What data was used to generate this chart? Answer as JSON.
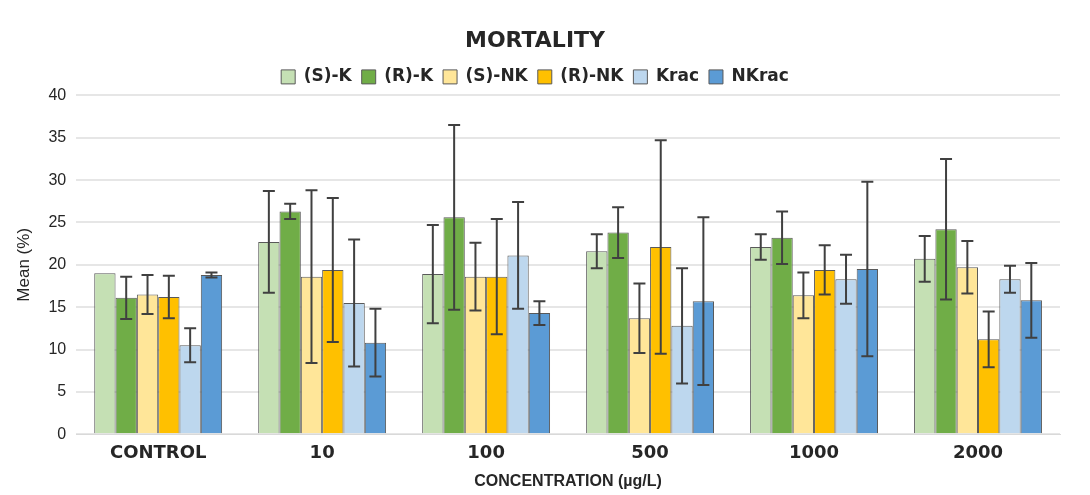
{
  "chart_data": {
    "type": "bar",
    "title": "MORTALITY",
    "xlabel": "CONCENTRATION (µg/L)",
    "ylabel": "Mean (%)",
    "categories": [
      "CONTROL",
      "10",
      "100",
      "500",
      "1000",
      "2000"
    ],
    "series": [
      {
        "name": "(S)-K",
        "color": "#c5e0b4",
        "values": [
          19.0,
          22.7,
          18.9,
          21.6,
          22.1,
          20.7
        ],
        "errors": [
          null,
          6.0,
          5.8,
          2.0,
          1.5,
          2.7
        ]
      },
      {
        "name": "(R)-K",
        "color": "#70ad47",
        "values": [
          16.1,
          26.3,
          25.6,
          23.8,
          23.2,
          24.2
        ],
        "errors": [
          2.5,
          0.9,
          10.9,
          3.0,
          3.1,
          8.3
        ]
      },
      {
        "name": "(S)-NK",
        "color": "#ffe699",
        "values": [
          16.5,
          18.6,
          18.6,
          13.7,
          16.4,
          19.7
        ],
        "errors": [
          2.3,
          10.2,
          4.0,
          4.1,
          2.7,
          3.1
        ]
      },
      {
        "name": "(R)-NK",
        "color": "#ffc000",
        "values": [
          16.2,
          19.4,
          18.6,
          22.1,
          19.4,
          11.2
        ],
        "errors": [
          2.5,
          8.5,
          6.8,
          12.6,
          2.9,
          3.3
        ]
      },
      {
        "name": "Krac",
        "color": "#bdd7ee",
        "values": [
          10.5,
          15.5,
          21.1,
          12.8,
          18.3,
          18.3
        ],
        "errors": [
          2.0,
          7.5,
          6.3,
          6.8,
          2.9,
          1.6
        ]
      },
      {
        "name": "NKrac",
        "color": "#5b9bd5",
        "values": [
          18.8,
          10.8,
          14.3,
          15.7,
          19.5,
          15.8
        ],
        "errors": [
          0.3,
          4.0,
          1.4,
          9.9,
          10.3,
          4.4
        ]
      }
    ],
    "ylim": [
      0,
      40
    ],
    "yticks": [
      0,
      5,
      10,
      15,
      20,
      25,
      30,
      35,
      40
    ],
    "grid": "y",
    "legend": "top"
  }
}
